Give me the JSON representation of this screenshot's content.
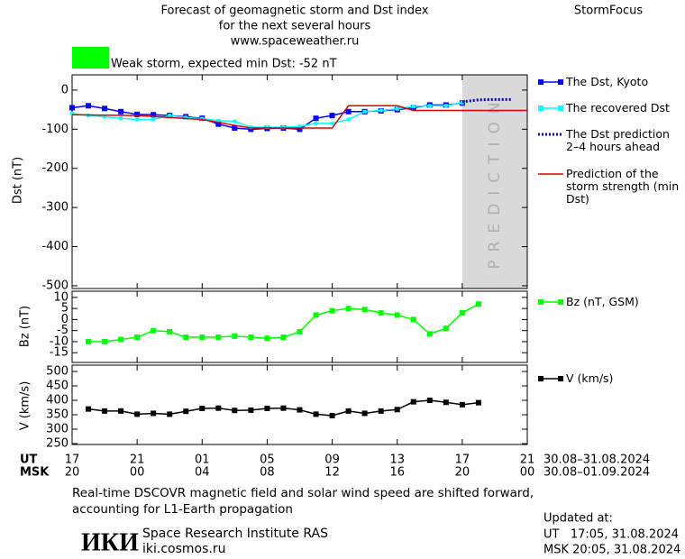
{
  "header": {
    "title_lines": [
      "Forecast of geomagnetic storm and Dst index",
      "for the next several hours",
      "www.spaceweather.ru"
    ],
    "brand": "StormFocus",
    "status": {
      "text": "Weak storm, expected min Dst: -52 nT",
      "color": "#00ff00"
    }
  },
  "chart_data": [
    {
      "type": "line",
      "ylabel": "Dst (nT)",
      "xlim": [
        0,
        28
      ],
      "ylim": [
        -507,
        39
      ],
      "yticks": [
        0,
        -100,
        -200,
        -300,
        -400,
        -500
      ],
      "prediction_region": {
        "xlim": [
          24,
          28
        ],
        "label": "PREDICTION",
        "color": "#d9d9d9"
      },
      "series": [
        {
          "name": "The Dst, Kyoto",
          "color": "#0000ff",
          "marker": "square",
          "x": [
            0,
            1,
            2,
            3,
            4,
            5,
            6,
            7,
            8,
            9,
            10,
            11,
            12,
            13,
            14,
            15,
            16,
            17,
            18,
            19,
            20,
            21,
            22,
            23,
            24
          ],
          "values": [
            -45,
            -40,
            -47,
            -55,
            -62,
            -63,
            -65,
            -68,
            -72,
            -87,
            -97,
            -100,
            -98,
            -97,
            -100,
            -72,
            -65,
            -55,
            -55,
            -53,
            -50,
            -45,
            -38,
            -38,
            -33
          ]
        },
        {
          "name": "The recovered Dst",
          "color": "#00ffff",
          "marker": "small-square",
          "x": [
            0,
            1,
            2,
            3,
            4,
            5,
            6,
            7,
            8,
            9,
            10,
            11,
            12,
            13,
            14,
            15,
            16,
            17,
            18,
            19,
            20,
            21,
            22,
            23,
            24
          ],
          "values": [
            -60,
            -65,
            -68,
            -72,
            -75,
            -75,
            -65,
            -70,
            -73,
            -78,
            -80,
            -95,
            -95,
            -95,
            -93,
            -85,
            -85,
            -75,
            -55,
            -52,
            -48,
            -42,
            -40,
            -40,
            -32
          ]
        },
        {
          "name": "The Dst prediction 2–4 hours ahead",
          "color": "#0000cc",
          "marker": "dotted",
          "x": [
            24,
            25,
            26,
            27
          ],
          "values": [
            -30,
            -25,
            -24,
            -24
          ]
        },
        {
          "name": "Prediction of the storm strength (min Dst)",
          "color": "#e00000",
          "marker": "none",
          "x": [
            0,
            4,
            8,
            10,
            11,
            16,
            17,
            20,
            21,
            28
          ],
          "values": [
            -63,
            -65,
            -75,
            -90,
            -97,
            -97,
            -40,
            -40,
            -52,
            -52
          ]
        }
      ]
    },
    {
      "type": "line",
      "ylabel": "Bz (nT)",
      "xlim": [
        0,
        28
      ],
      "ylim": [
        -19.4,
        12.8
      ],
      "yticks": [
        10,
        5,
        0,
        -5,
        -10,
        -15
      ],
      "series": [
        {
          "name": "Bz (nT, GSM)",
          "color": "#00ff00",
          "marker": "square",
          "x": [
            1,
            2,
            3,
            4,
            5,
            6,
            7,
            8,
            9,
            10,
            11,
            12,
            13,
            14,
            15,
            16,
            17,
            18,
            19,
            20,
            21,
            22,
            23,
            24,
            25
          ],
          "values": [
            -10,
            -10,
            -9,
            -8,
            -5,
            -5.5,
            -8,
            -8,
            -8,
            -7.5,
            -8,
            -8.5,
            -8,
            -5.5,
            2,
            4,
            5,
            4.5,
            3,
            2,
            0,
            -6.5,
            -4,
            3,
            7
          ]
        }
      ]
    },
    {
      "type": "line",
      "ylabel": "V (km/s)",
      "xlim": [
        0,
        28
      ],
      "ylim": [
        247,
        522
      ],
      "yticks": [
        500,
        450,
        400,
        350,
        300,
        250
      ],
      "xlabel": "UT",
      "xticks": [
        {
          "value": 0,
          "label": "17"
        },
        {
          "value": 4,
          "label": "21"
        },
        {
          "value": 8,
          "label": "01"
        },
        {
          "value": 12,
          "label": "05"
        },
        {
          "value": 16,
          "label": "09"
        },
        {
          "value": 20,
          "label": "13"
        },
        {
          "value": 24,
          "label": "17"
        },
        {
          "value": 28,
          "label": "21"
        }
      ],
      "x2label": "MSK",
      "x2ticklabels": [
        "20",
        "00",
        "04",
        "08",
        "12",
        "16",
        "20",
        "00"
      ],
      "date_ranges": [
        "30.08–31.08.2024",
        "30.08–01.09.2024"
      ],
      "series": [
        {
          "name": "V (km/s)",
          "color": "#000000",
          "marker": "square",
          "x": [
            1,
            2,
            3,
            4,
            5,
            6,
            7,
            8,
            9,
            10,
            11,
            12,
            13,
            14,
            15,
            16,
            17,
            18,
            19,
            20,
            21,
            22,
            23,
            24,
            25
          ],
          "values": [
            370,
            363,
            363,
            352,
            355,
            352,
            362,
            372,
            373,
            365,
            366,
            372,
            373,
            367,
            352,
            347,
            363,
            355,
            363,
            368,
            395,
            400,
            393,
            385,
            392
          ]
        }
      ]
    }
  ],
  "footer": {
    "note": "Real-time DSCOVR magnetic field and solar wind speed are shifted forward, accounting for L1-Earth propagation",
    "logo": "ИКИ",
    "institute": "Space Research Institute RAS",
    "url": "iki.cosmos.ru",
    "updated": [
      "Updated at:",
      "UT   17:05, 31.08.2024",
      "MSK 20:05, 31.08.2024"
    ]
  }
}
